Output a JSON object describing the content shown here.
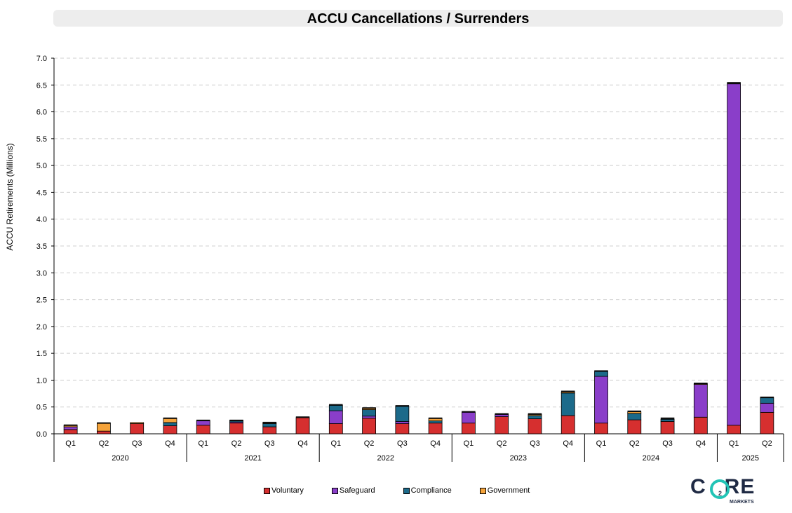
{
  "chart_data": {
    "type": "bar",
    "stacked": true,
    "title": "ACCU Cancellations / Surrenders",
    "ylabel": "ACCU Retirements (Millions)",
    "ylim": [
      0,
      7.0
    ],
    "yticks": [
      "0.0",
      "0.5",
      "1.0",
      "1.5",
      "2.0",
      "2.5",
      "3.0",
      "3.5",
      "4.0",
      "4.5",
      "5.0",
      "5.5",
      "6.0",
      "6.5",
      "7.0"
    ],
    "grid": true,
    "legend_position": "bottom",
    "years": [
      "2020",
      "2021",
      "2022",
      "2023",
      "2024",
      "2025"
    ],
    "categories": [
      "Q1",
      "Q2",
      "Q3",
      "Q4",
      "Q1",
      "Q2",
      "Q3",
      "Q4",
      "Q1",
      "Q2",
      "Q3",
      "Q4",
      "Q1",
      "Q2",
      "Q3",
      "Q4",
      "Q1",
      "Q2",
      "Q3",
      "Q4",
      "Q1",
      "Q2"
    ],
    "series": [
      {
        "name": "Voluntary",
        "color": "#d62f2f",
        "values": [
          0.08,
          0.05,
          0.19,
          0.15,
          0.16,
          0.2,
          0.13,
          0.3,
          0.19,
          0.29,
          0.19,
          0.2,
          0.2,
          0.32,
          0.28,
          0.34,
          0.2,
          0.26,
          0.23,
          0.31,
          0.16,
          0.4
        ]
      },
      {
        "name": "Safeguard",
        "color": "#8a3ec9",
        "values": [
          0.05,
          0.0,
          0.0,
          0.0,
          0.08,
          0.02,
          0.0,
          0.0,
          0.24,
          0.04,
          0.04,
          0.0,
          0.2,
          0.04,
          0.0,
          0.0,
          0.87,
          0.0,
          0.0,
          0.61,
          6.36,
          0.17
        ]
      },
      {
        "name": "Compliance",
        "color": "#1c6a8a",
        "values": [
          0.0,
          0.0,
          0.0,
          0.06,
          0.0,
          0.02,
          0.06,
          0.0,
          0.1,
          0.12,
          0.28,
          0.04,
          0.0,
          0.0,
          0.06,
          0.42,
          0.09,
          0.12,
          0.04,
          0.0,
          0.0,
          0.1
        ]
      },
      {
        "name": "Government",
        "color": "#f5a33a",
        "values": [
          0.03,
          0.15,
          0.02,
          0.08,
          0.0,
          0.01,
          0.02,
          0.0,
          0.0,
          0.03,
          0.0,
          0.05,
          0.0,
          0.0,
          0.02,
          0.02,
          0.0,
          0.03,
          0.0,
          0.02,
          0.0,
          0.0
        ]
      }
    ],
    "series_extra_black": [
      0.01,
      0.01,
      0.0,
      0.01,
      0.02,
      0.01,
      0.01,
      0.02,
      0.02,
      0.01,
      0.02,
      0.01,
      0.02,
      0.02,
      0.02,
      0.02,
      0.02,
      0.02,
      0.03,
      0.01,
      0.03,
      0.02
    ]
  },
  "logo": {
    "word_left": "C",
    "word_right": "RE",
    "subscript": "2",
    "sub": "MARKETS"
  }
}
